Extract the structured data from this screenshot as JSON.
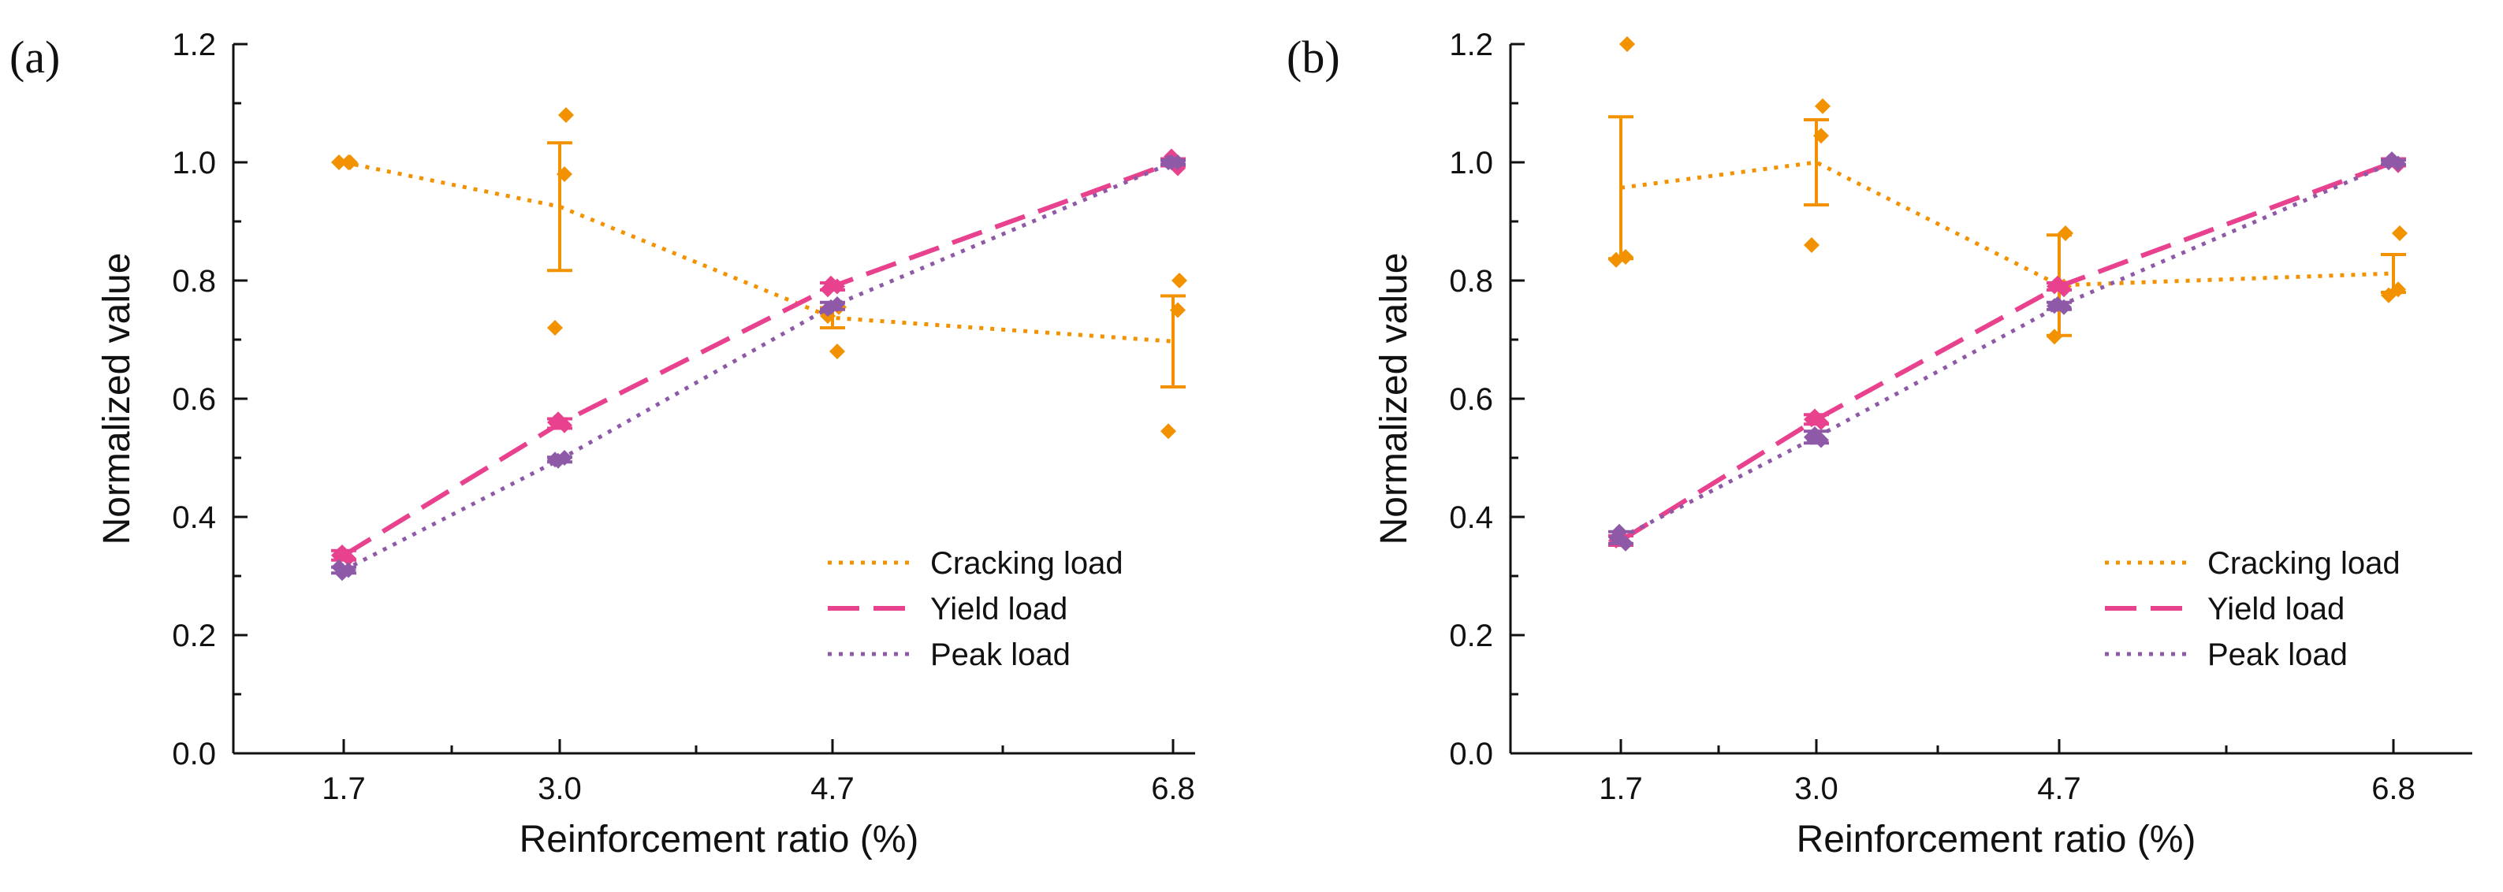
{
  "chart_data": [
    {
      "type": "line",
      "panel_label": "(a)",
      "xlabel": "Reinforcement ratio (%)",
      "ylabel": "Normalized value",
      "x": [
        1.7,
        3.0,
        4.7,
        6.8
      ],
      "x_tick_labels": [
        "1.7",
        "3.0",
        "4.7",
        "6.8"
      ],
      "ylim": [
        0.0,
        1.2
      ],
      "y_ticks": [
        0.0,
        0.2,
        0.4,
        0.6,
        0.8,
        1.0,
        1.2
      ],
      "y_tick_labels": [
        "0.0",
        "0.2",
        "0.4",
        "0.6",
        "0.8",
        "1.0",
        "1.2"
      ],
      "legend_position": "bottom-right",
      "series": [
        {
          "name": "Cracking load",
          "color": "#f39200",
          "style": "dotted",
          "values": [
            1.0,
            0.925,
            0.737,
            0.697
          ],
          "error": [
            0.0,
            0.108,
            0.017,
            0.077
          ],
          "samples": [
            [
              1.0,
              1.0,
              1.0
            ],
            [
              1.08,
              0.98,
              0.72
            ],
            [
              0.755,
              0.68,
              0.74
            ],
            [
              0.8,
              0.75,
              0.545
            ]
          ]
        },
        {
          "name": "Yield load",
          "color": "#e8428f",
          "style": "dashed",
          "values": [
            0.335,
            0.558,
            0.79,
            1.0
          ],
          "error": [
            0.008,
            0.008,
            0.006,
            0.006
          ],
          "samples": [
            [
              0.34,
              0.33,
              0.335
            ],
            [
              0.565,
              0.555,
              0.56
            ],
            [
              0.795,
              0.79,
              0.785
            ],
            [
              1.01,
              0.99,
              1.0
            ]
          ]
        },
        {
          "name": "Peak load",
          "color": "#8e5aa8",
          "style": "dotted",
          "values": [
            0.31,
            0.497,
            0.757,
            1.0
          ],
          "error": [
            0.005,
            0.004,
            0.006,
            0.004
          ],
          "samples": [
            [
              0.305,
              0.31,
              0.315
            ],
            [
              0.495,
              0.5,
              0.497
            ],
            [
              0.755,
              0.76,
              0.752
            ],
            [
              1.0,
              1.0,
              1.0
            ]
          ]
        }
      ]
    },
    {
      "type": "line",
      "panel_label": "(b)",
      "xlabel": "Reinforcement ratio (%)",
      "ylabel": "Normalized value",
      "x": [
        1.7,
        3.0,
        4.7,
        6.8
      ],
      "x_tick_labels": [
        "1.7",
        "3.0",
        "4.7",
        "6.8"
      ],
      "ylim": [
        0.0,
        1.2
      ],
      "y_ticks": [
        0.0,
        0.2,
        0.4,
        0.6,
        0.8,
        1.0,
        1.2
      ],
      "y_tick_labels": [
        "0.0",
        "0.2",
        "0.4",
        "0.6",
        "0.8",
        "1.0",
        "1.2"
      ],
      "legend_position": "bottom-right",
      "series": [
        {
          "name": "Cracking load",
          "color": "#f39200",
          "style": "dotted",
          "values": [
            0.957,
            1.0,
            0.792,
            0.812
          ],
          "error": [
            0.12,
            0.072,
            0.085,
            0.032
          ],
          "samples": [
            [
              1.2,
              0.84,
              0.835
            ],
            [
              1.095,
              1.045,
              0.86
            ],
            [
              0.88,
              0.79,
              0.705
            ],
            [
              0.88,
              0.785,
              0.775
            ]
          ]
        },
        {
          "name": "Yield load",
          "color": "#e8428f",
          "style": "dashed",
          "values": [
            0.36,
            0.565,
            0.79,
            1.0
          ],
          "error": [
            0.008,
            0.008,
            0.006,
            0.006
          ],
          "samples": [
            [
              0.37,
              0.355,
              0.36
            ],
            [
              0.57,
              0.56,
              0.565
            ],
            [
              0.795,
              0.785,
              0.79
            ],
            [
              1.005,
              0.995,
              1.0
            ]
          ]
        },
        {
          "name": "Peak load",
          "color": "#8e5aa8",
          "style": "dotted",
          "values": [
            0.365,
            0.535,
            0.757,
            1.0
          ],
          "error": [
            0.01,
            0.01,
            0.006,
            0.004
          ],
          "samples": [
            [
              0.375,
              0.355,
              0.365
            ],
            [
              0.54,
              0.53,
              0.535
            ],
            [
              0.76,
              0.755,
              0.757
            ],
            [
              1.005,
              0.998,
              1.0
            ]
          ]
        }
      ]
    }
  ]
}
